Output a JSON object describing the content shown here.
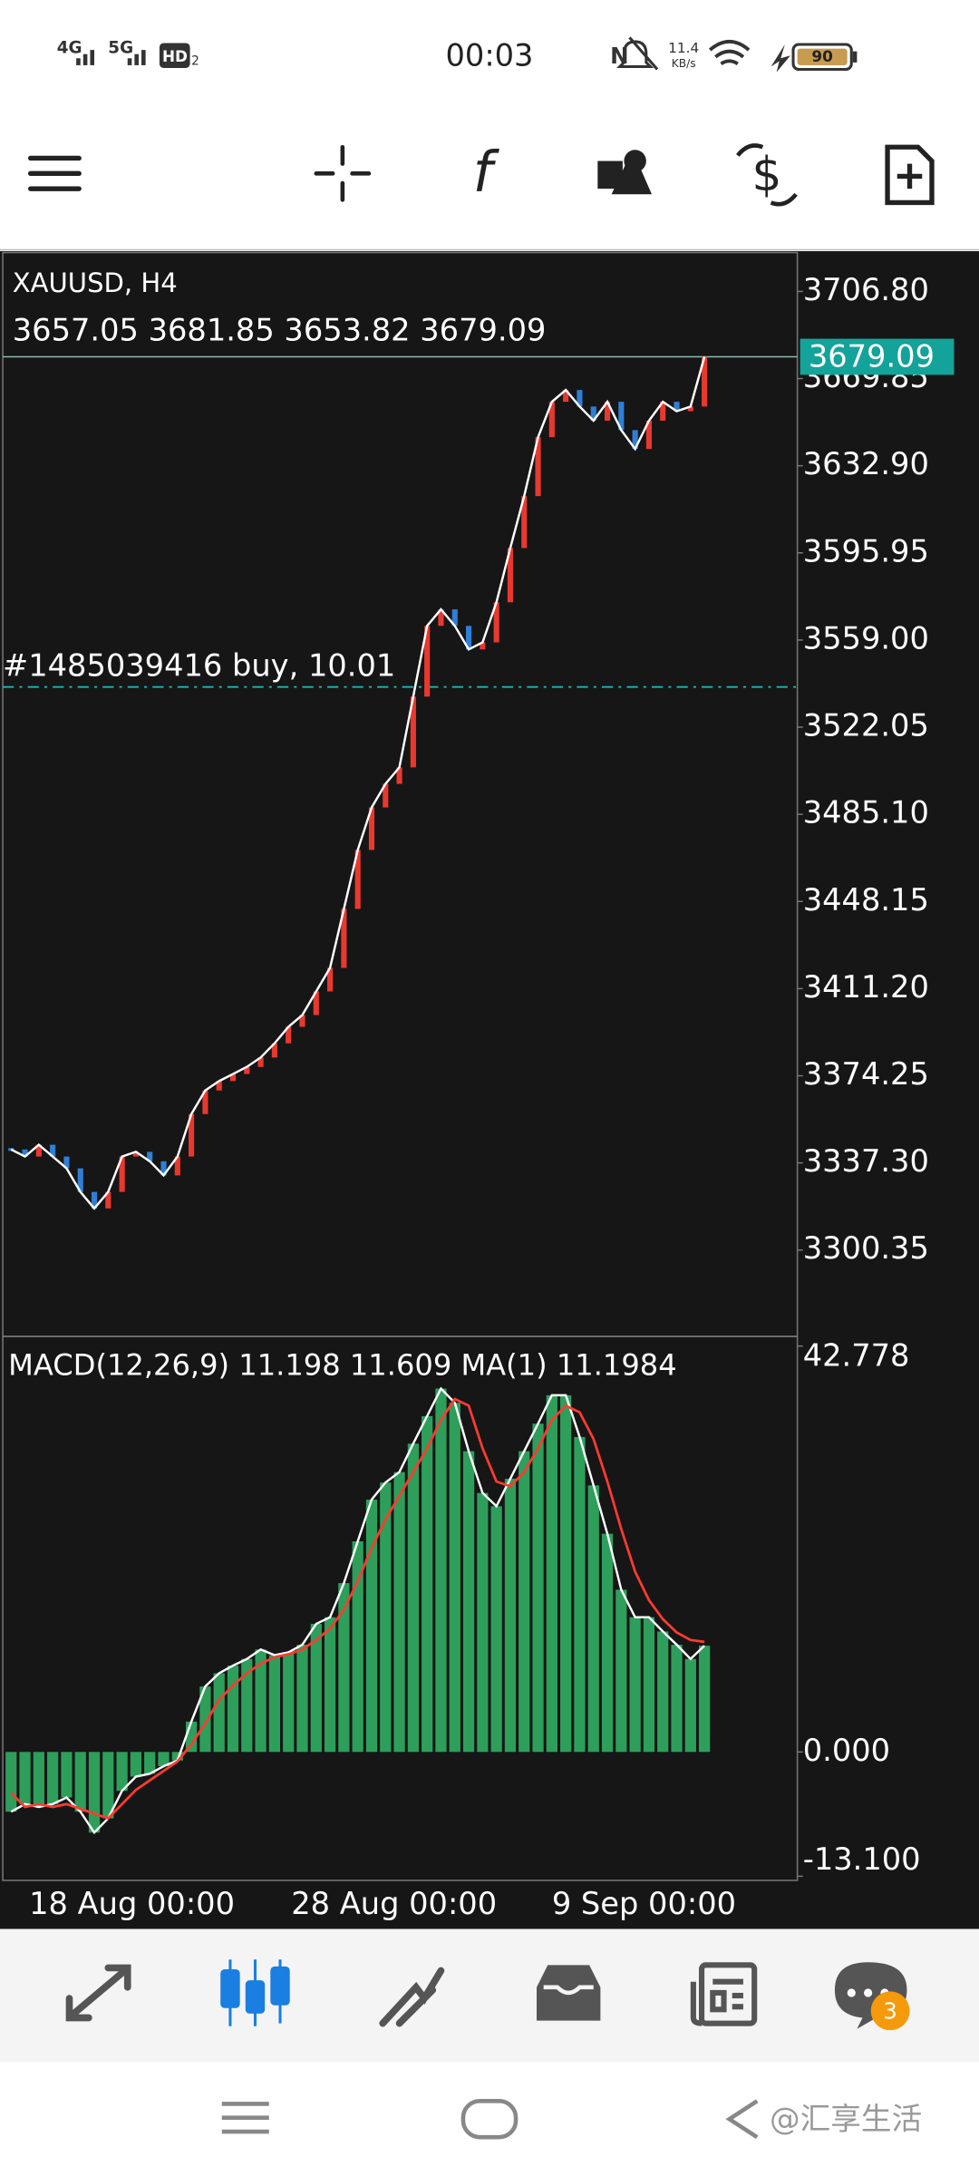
{
  "status_bar": {
    "network_1": "4G",
    "network_2": "5G",
    "hd": "HD",
    "hd_sub": "2",
    "time": "00:03",
    "speed": "11.4",
    "speed_unit": "KB/s",
    "battery": "90"
  },
  "chart_data": {
    "type": "candlestick",
    "symbol": "XAUUSD, H4",
    "ohlc": "3657.05 3681.85 3653.82 3679.09",
    "current_price": 3679.09,
    "order_label": "#1485039416 buy, 10.01",
    "order_price": 3539.1,
    "ylim": [
      3263.74,
      3723.27
    ],
    "yticks": [
      {
        "value": 3706.8,
        "label": "3706.80"
      },
      {
        "value": 3669.85,
        "label": "3669.85"
      },
      {
        "value": 3632.9,
        "label": "3632.90"
      },
      {
        "value": 3595.95,
        "label": "3595.95"
      },
      {
        "value": 3559,
        "label": "3559.00"
      },
      {
        "value": 3522.05,
        "label": "3522.05"
      },
      {
        "value": 3485.1,
        "label": "3485.10"
      },
      {
        "value": 3448.15,
        "label": "3448.15"
      },
      {
        "value": 3411.2,
        "label": "3411.20"
      },
      {
        "value": 3374.25,
        "label": "3374.25"
      },
      {
        "value": 3337.3,
        "label": "3337.30"
      },
      {
        "value": 3300.35,
        "label": "3300.35"
      }
    ],
    "closes": [
      3343,
      3340,
      3345,
      3340,
      3335,
      3325,
      3318,
      3325,
      3340,
      3342,
      3338,
      3332,
      3340,
      3358,
      3368,
      3372,
      3375,
      3378,
      3382,
      3388,
      3395,
      3400,
      3410,
      3420,
      3445,
      3470,
      3488,
      3498,
      3505,
      3535,
      3565,
      3572,
      3565,
      3555,
      3558,
      3575,
      3598,
      3620,
      3645,
      3660,
      3665,
      3658,
      3652,
      3660,
      3648,
      3640,
      3652,
      3660,
      3656,
      3658,
      3679.09
    ],
    "up_color": "#e8392f",
    "down_color": "#2f7fd6",
    "ma_color": "#ffffff",
    "x_labels": [
      "18 Aug 00:00",
      "28 Aug 00:00",
      "9 Sep 00:00"
    ],
    "macd": {
      "label": "MACD(12,26,9) 11.198 11.609 MA(1) 11.1984",
      "ylim": [
        -13.54,
        43.8
      ],
      "yticks": [
        42.778,
        {
          "value": 0,
          "label": "0.000"
        },
        {
          "value": -13.1,
          "label": "-13.100"
        }
      ],
      "values": [
        -6.3,
        -5.5,
        -5.8,
        -5.5,
        -4.8,
        -6.3,
        -8.5,
        -7,
        -4.1,
        -2.6,
        -2.3,
        -1.5,
        -0.9,
        3.2,
        6.9,
        8.3,
        9.1,
        9.8,
        10.8,
        10.2,
        10.5,
        11.3,
        13.5,
        14.2,
        17.8,
        22.2,
        26.6,
        28.4,
        29.5,
        32.5,
        35.4,
        38.3,
        36.8,
        31.7,
        27.3,
        25.9,
        28.8,
        31.7,
        34.6,
        37.6,
        37.6,
        33.2,
        28.1,
        23,
        17.1,
        14.2,
        14.2,
        12.7,
        11.3,
        9.8,
        11.198
      ],
      "signal": [
        -4.3,
        -5.8,
        -5.5,
        -5.8,
        -5.5,
        -6,
        -6.5,
        -7,
        -5.5,
        -4,
        -3,
        -2,
        -1,
        0.8,
        3,
        5.5,
        7,
        8.3,
        9.3,
        10,
        10.3,
        10.8,
        11.8,
        13,
        15,
        18,
        21.5,
        24.5,
        27,
        29.5,
        32,
        35,
        37.2,
        36.5,
        32,
        28.5,
        28,
        29.5,
        32,
        35,
        36.5,
        35.8,
        33,
        28.5,
        23.5,
        19,
        16,
        14,
        12.6,
        11.8,
        11.609
      ],
      "color": "#2e9e5b",
      "signal_color": "#ff3b30"
    }
  },
  "bottom_nav": {
    "badge": "3"
  },
  "system_nav": {
    "watermark": "@汇享生活"
  }
}
